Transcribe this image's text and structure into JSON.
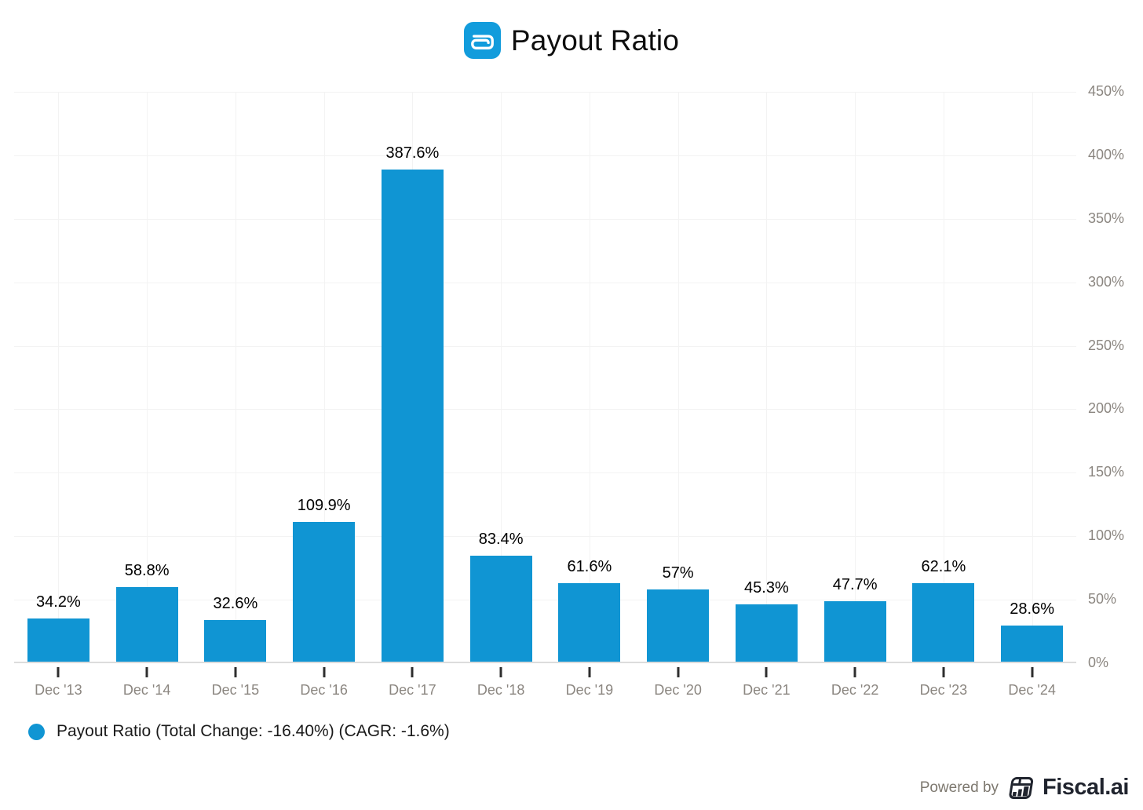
{
  "header": {
    "title": "Payout Ratio",
    "logo_icon": "abbott-a-icon"
  },
  "chart_data": {
    "type": "bar",
    "title": "Payout Ratio",
    "categories": [
      "Dec '13",
      "Dec '14",
      "Dec '15",
      "Dec '16",
      "Dec '17",
      "Dec '18",
      "Dec '19",
      "Dec '20",
      "Dec '21",
      "Dec '22",
      "Dec '23",
      "Dec '24"
    ],
    "values": [
      34.2,
      58.8,
      32.6,
      109.9,
      387.6,
      83.4,
      61.6,
      57,
      45.3,
      47.7,
      62.1,
      28.6
    ],
    "value_labels": [
      "34.2%",
      "58.8%",
      "32.6%",
      "109.9%",
      "387.6%",
      "83.4%",
      "61.6%",
      "57%",
      "45.3%",
      "47.7%",
      "62.1%",
      "28.6%"
    ],
    "series_name": "Payout Ratio",
    "xlabel": "",
    "ylabel": "",
    "ylim": [
      0,
      450
    ],
    "y_tick_values": [
      0,
      50,
      100,
      150,
      200,
      250,
      300,
      350,
      400,
      450
    ],
    "y_tick_labels": [
      "0%",
      "50%",
      "100%",
      "150%",
      "200%",
      "250%",
      "300%",
      "350%",
      "400%",
      "450%"
    ],
    "y_axis_side": "right",
    "grid": true,
    "legend_position": "bottom-left",
    "bar_color": "#1095d3"
  },
  "legend": {
    "label": "Payout Ratio (Total Change: -16.40%) (CAGR: -1.6%)",
    "total_change": "-16.40%",
    "cagr": "-1.6%",
    "marker_color": "#1095d3"
  },
  "footer": {
    "powered_by": "Powered by",
    "brand": "Fiscal.ai"
  },
  "colors": {
    "bar": "#1095d3",
    "title_icon_bg": "#129cdc",
    "axis_label": "#8b8680",
    "gridline": "#f3f3f3",
    "axis_line": "#dcdcdc",
    "brand_dark": "#20242e"
  }
}
